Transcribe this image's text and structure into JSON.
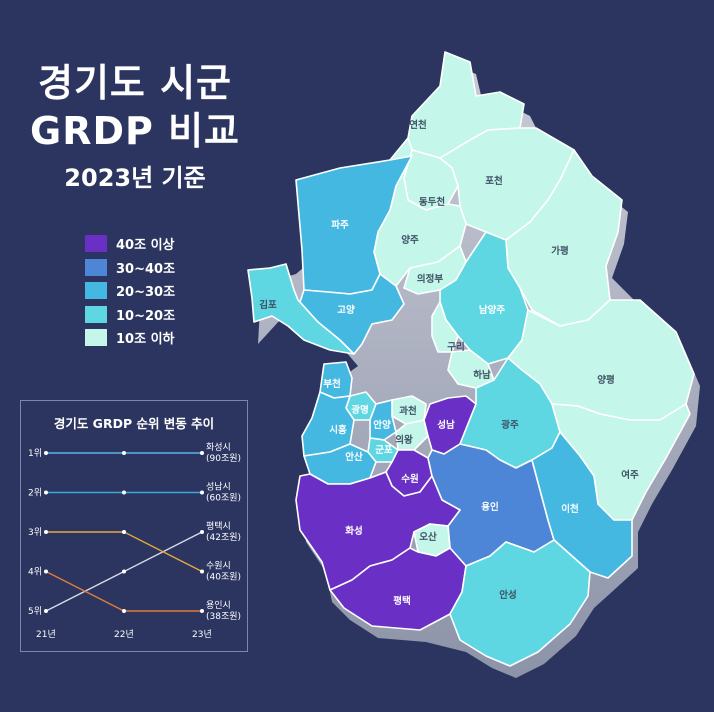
{
  "title": {
    "line1": "경기도 시군",
    "line2": "GRDP 비교",
    "line3": "2023년 기준"
  },
  "legend": [
    {
      "label": "40조 이상",
      "color": "#6a2fc4"
    },
    {
      "label": "30~40조",
      "color": "#4d86d6"
    },
    {
      "label": "20~30조",
      "color": "#45b8e2"
    },
    {
      "label": "10~20조",
      "color": "#5ed7e2"
    },
    {
      "label": "10조 이하",
      "color": "#c4f6ea"
    }
  ],
  "regions": [
    "연천",
    "포천",
    "동두천",
    "양주",
    "파주",
    "가평",
    "의정부",
    "김포",
    "고양",
    "남양주",
    "구리",
    "하남",
    "양평",
    "부천",
    "광명",
    "과천",
    "시흥",
    "안양",
    "의왕",
    "성남",
    "광주",
    "군포",
    "안산",
    "수원",
    "여주",
    "용인",
    "이천",
    "화성",
    "오산",
    "평택",
    "안성"
  ],
  "chart_data": {
    "type": "line",
    "title": "경기도 GRDP 순위 변동 추이",
    "categories": [
      "21년",
      "22년",
      "23년"
    ],
    "y_ticks": [
      "1위",
      "2위",
      "3위",
      "4위",
      "5위"
    ],
    "series": [
      {
        "name": "화성시",
        "end_label": [
          "화성시",
          "(90조원)"
        ],
        "color": "#5ab3e8",
        "ranks": [
          1,
          1,
          1
        ]
      },
      {
        "name": "성남시",
        "end_label": [
          "성남시",
          "(60조원)"
        ],
        "color": "#3aa8d8",
        "ranks": [
          2,
          2,
          2
        ]
      },
      {
        "name": "평택시",
        "end_label": [
          "평택시",
          "(42조원)"
        ],
        "color": "#d9dbe8",
        "ranks": [
          5,
          4,
          3
        ]
      },
      {
        "name": "수원시",
        "end_label": [
          "수원시",
          "(40조원)"
        ],
        "color": "#e8a93c",
        "ranks": [
          3,
          3,
          4
        ]
      },
      {
        "name": "용인시",
        "end_label": [
          "용인시",
          "(38조원)"
        ],
        "color": "#e07a3a",
        "ranks": [
          4,
          5,
          5
        ]
      }
    ]
  }
}
